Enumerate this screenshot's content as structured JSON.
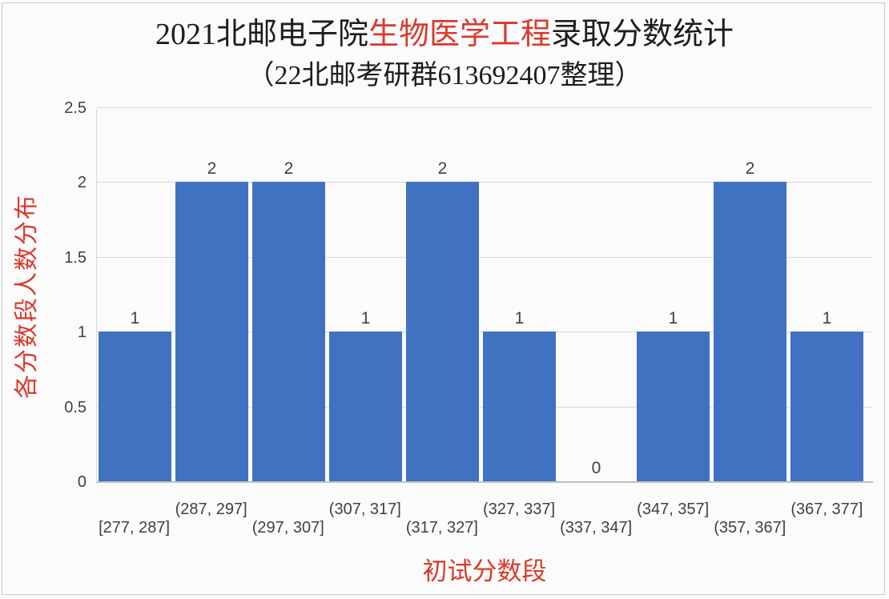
{
  "header": {
    "title_prefix": "2021北邮电子院",
    "title_highlight": "生物医学工程",
    "title_suffix": "录取分数统计",
    "subtitle": "（22北邮考研群613692407整理）"
  },
  "colors": {
    "bar": "#4171C1",
    "accent_red": "#D93A2C",
    "tick_text": "#404040",
    "title_text": "#1D1D1D",
    "gridline": "#D9D9D9",
    "axis_line": "#BFBFBF",
    "background": "#FBFBFB",
    "frame_border": "#C9C9CE"
  },
  "chart_data": {
    "type": "bar",
    "title": "2021北邮电子院生物医学工程录取分数统计",
    "subtitle": "（22北邮考研群613692407整理）",
    "categories": [
      "[277, 287]",
      "(287, 297]",
      "(297, 307]",
      "(307, 317]",
      "(317, 327]",
      "(327, 337]",
      "(337, 347]",
      "(347, 357]",
      "(357, 367]",
      "(367, 377]"
    ],
    "values": [
      1,
      2,
      2,
      1,
      2,
      1,
      0,
      1,
      2,
      1
    ],
    "xlabel": "初试分数段",
    "ylabel": "各分数段人数分布",
    "ylim": [
      0,
      2.5
    ],
    "yticks": [
      0,
      0.5,
      1,
      1.5,
      2,
      2.5
    ],
    "grid": true,
    "legend": false,
    "data_labels": true
  }
}
